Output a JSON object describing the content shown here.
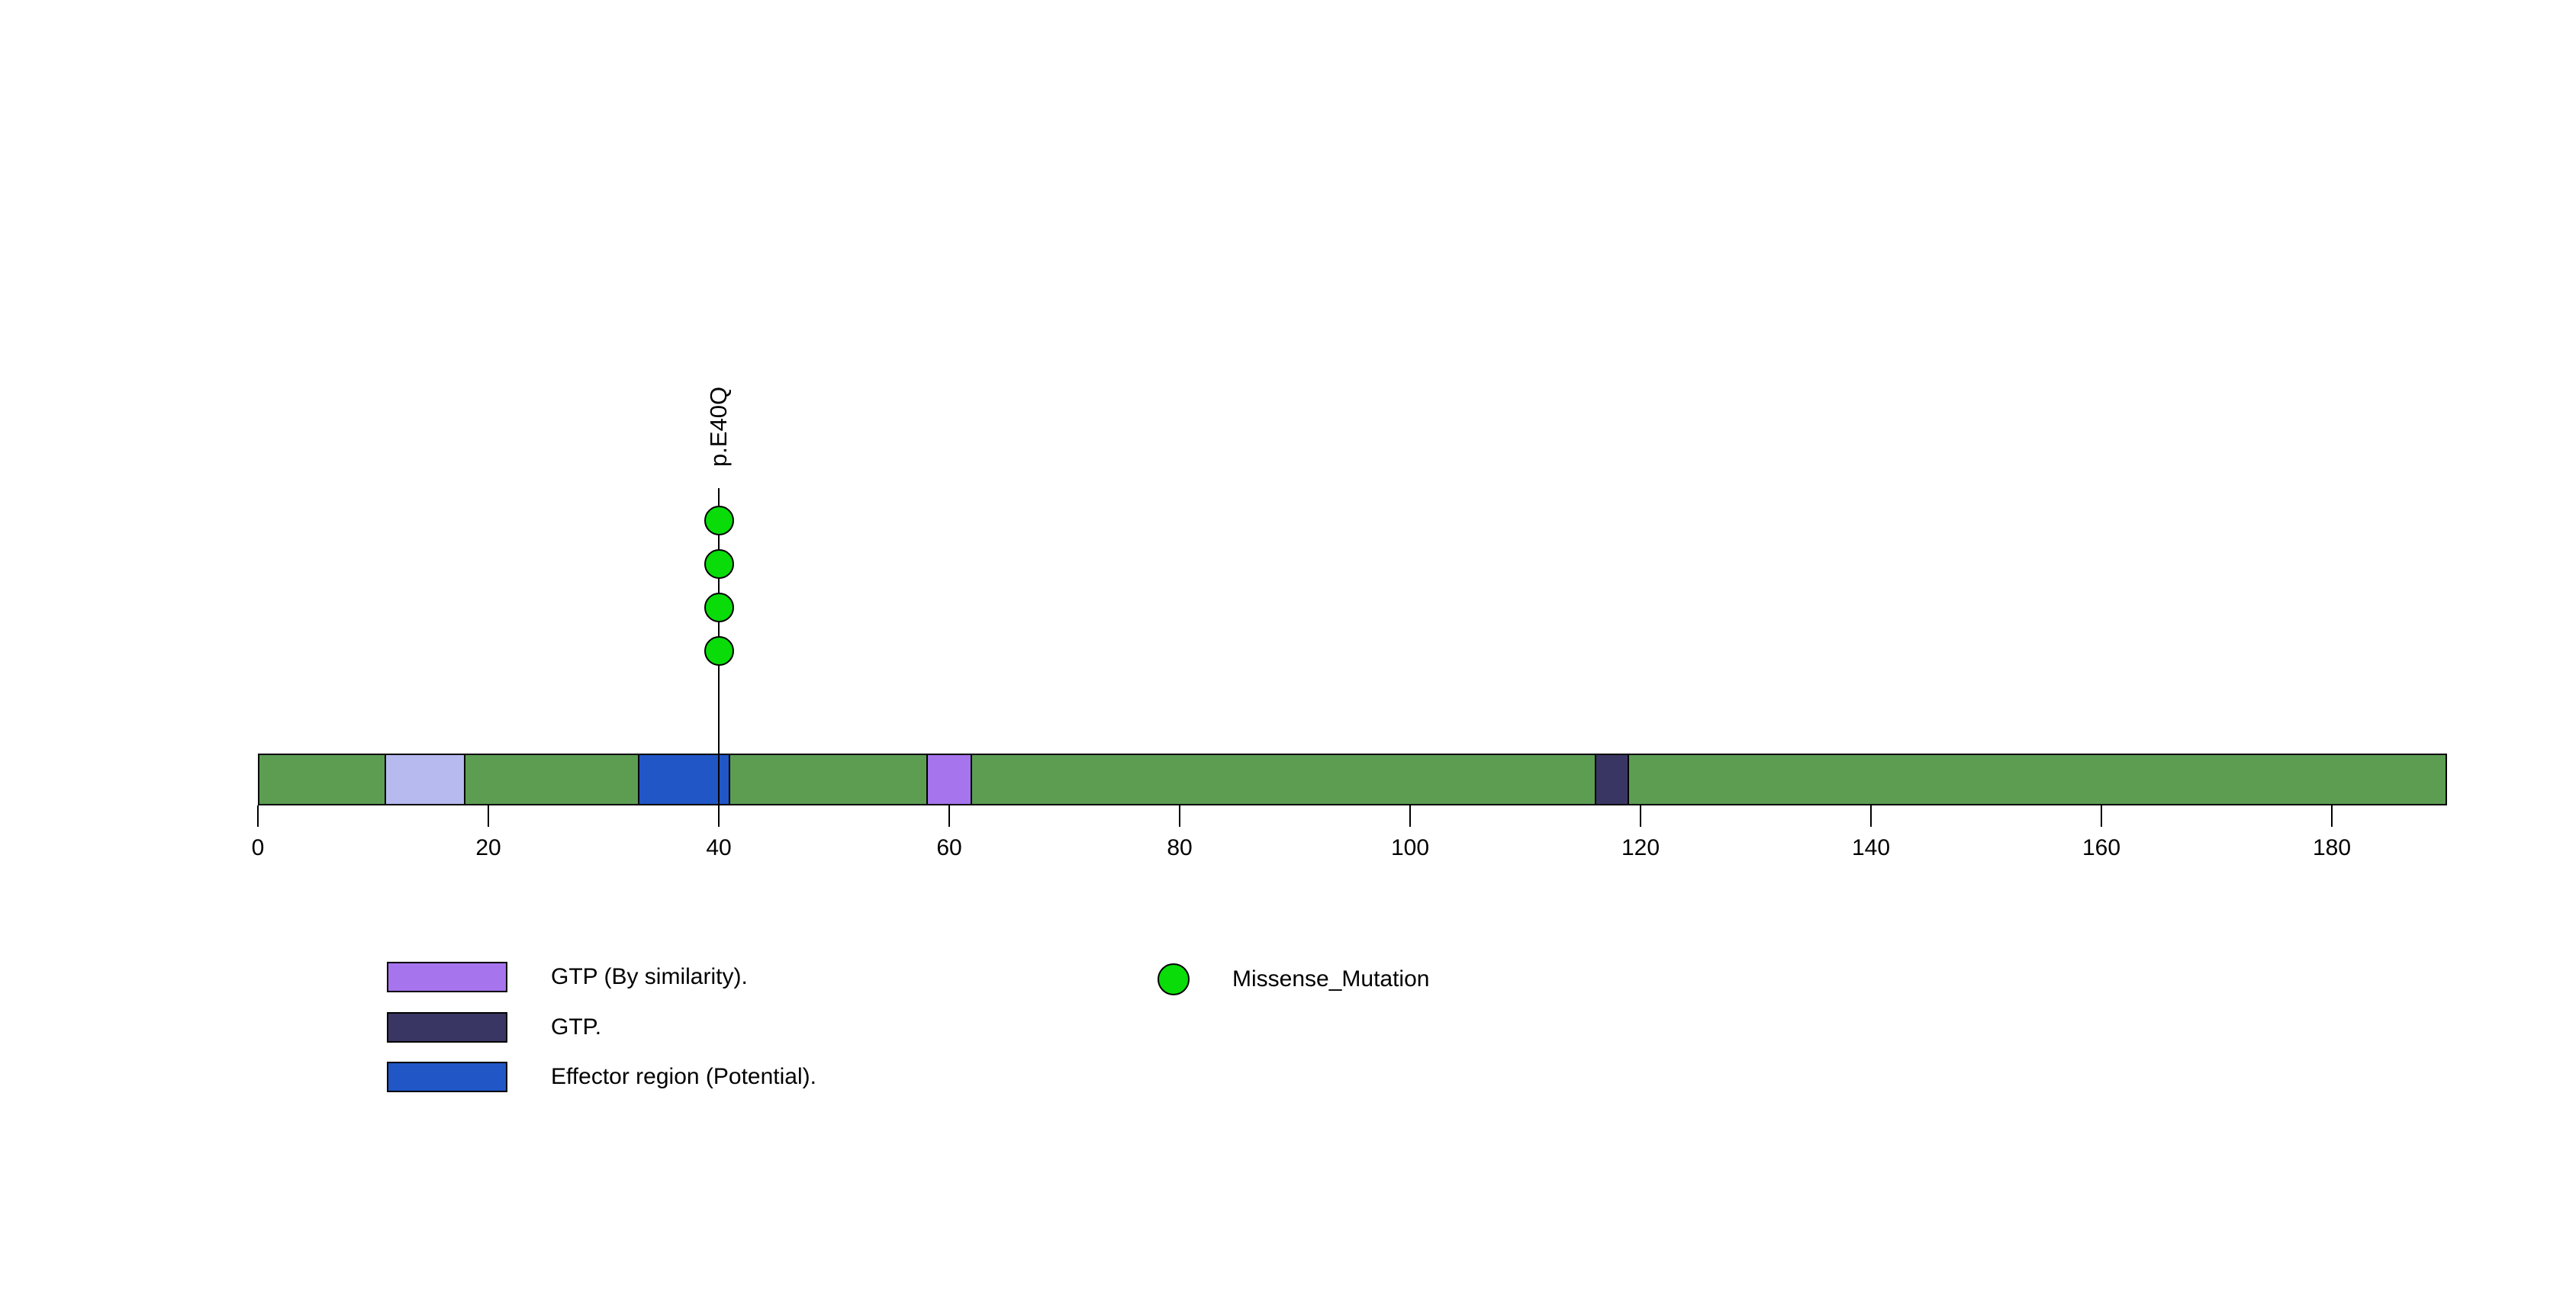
{
  "figure": {
    "kind": "protein lollipop mutation diagram",
    "background_color": "#FFFFFF"
  },
  "chart_data": {
    "type": "lollipop",
    "title": "",
    "xlabel": "",
    "ylabel": "",
    "axis": {
      "min": 0,
      "max": 190,
      "tick_step": 20,
      "ticks": [
        0,
        20,
        40,
        60,
        80,
        100,
        120,
        140,
        160,
        180
      ],
      "grid": false
    },
    "protein": {
      "length": 190,
      "backbone_color": "#5C9D52",
      "outline_color": "#000000"
    },
    "domains": [
      {
        "label": "GTP (By similarity).",
        "start": 11,
        "end": 18,
        "color": "#B7BAEF"
      },
      {
        "label": "Effector region (Potential).",
        "start": 33,
        "end": 41,
        "color": "#2156C6"
      },
      {
        "label": "GTP (By similarity).",
        "start": 58,
        "end": 62,
        "color": "#A674EC"
      },
      {
        "label": "GTP.",
        "start": 116,
        "end": 119,
        "color": "#3A3663"
      }
    ],
    "mutations": [
      {
        "label": "p.E40Q",
        "position": 40,
        "count": 4,
        "type": "Missense_Mutation",
        "color": "#09DC09"
      }
    ]
  },
  "legend": {
    "domains": [
      {
        "label": "GTP (By similarity).",
        "color": "#A674EC"
      },
      {
        "label": "GTP.",
        "color": "#3A3663"
      },
      {
        "label": "Effector region (Potential).",
        "color": "#2156C6"
      }
    ],
    "mutation_types": [
      {
        "label": "Missense_Mutation",
        "color": "#09DC09"
      }
    ]
  }
}
